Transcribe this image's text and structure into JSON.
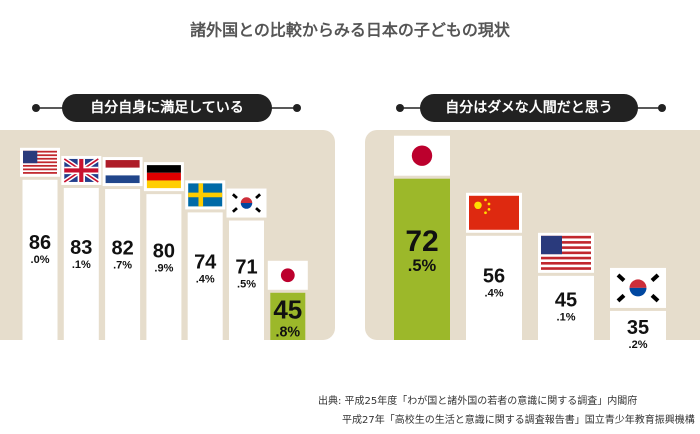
{
  "title": "諸外国との比較からみる日本の子どもの現状",
  "chart_data": [
    {
      "type": "bar",
      "title": "自分自身に満足している",
      "categories": [
        null,
        null,
        null,
        null,
        null,
        null,
        null
      ],
      "values": [
        86.0,
        83.1,
        82.7,
        80.9,
        74.4,
        71.5,
        45.8
      ],
      "value_labels": [
        "86.0%",
        "83.1%",
        "82.7%",
        "80.9%",
        "74.4%",
        "71.5%",
        "45.8%"
      ],
      "colors": [
        "#ffffff",
        "#ffffff",
        "#ffffff",
        "#ffffff",
        "#ffffff",
        "#ffffff",
        "#9cb82a"
      ],
      "ylim": [
        29,
        96.6
      ]
    },
    {
      "type": "bar",
      "title": "自分はダメな人間だと思う",
      "categories": [
        null,
        null,
        null,
        null
      ],
      "values": [
        72.5,
        56.4,
        45.1,
        35.2
      ],
      "value_labels": [
        "72.5%",
        "56.4%",
        "45.1%",
        "35.2%"
      ],
      "colors": [
        "#9cb82a",
        "#ffffff",
        "#ffffff",
        "#ffffff"
      ],
      "ylim": [
        27,
        80.6
      ]
    }
  ],
  "source": [
    "出典: 平成25年度「わが国と諸外国の若者の意識に関する調査」内閣府",
    "平成27年「高校生の生活と意識に関する調査報告書」国立青少年教育振興機構"
  ]
}
